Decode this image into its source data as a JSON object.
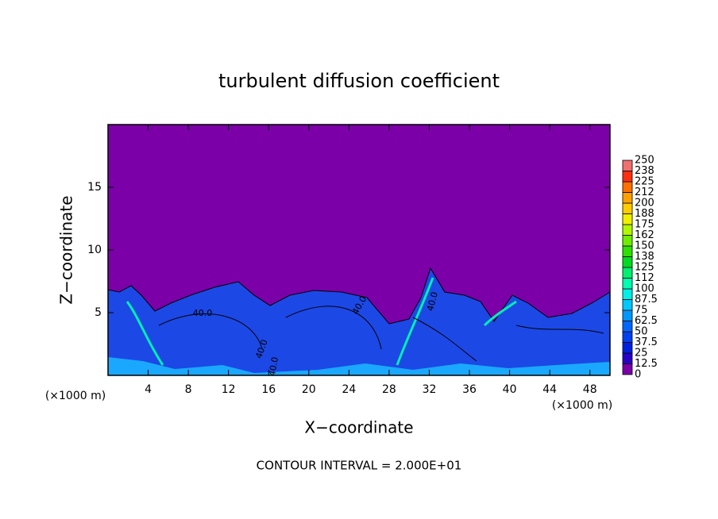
{
  "chart_data": {
    "type": "contour",
    "title": "turbulent diffusion coefficient",
    "x_label": "X−coordinate",
    "y_label": "Z−coordinate",
    "x_unit_label": "(×1000 m)",
    "footer": "CONTOUR INTERVAL = 2.000E+01",
    "xlim": [
      0,
      50
    ],
    "xticks": [
      4,
      8,
      12,
      16,
      20,
      24,
      28,
      32,
      36,
      40,
      44,
      48
    ],
    "ylim": [
      0,
      20
    ],
    "yticks": [
      5,
      10,
      15
    ],
    "contour_labels": [
      "40.0",
      "40.0",
      "40.0",
      "40.0",
      "40.0"
    ],
    "colorbar": {
      "ticks": [
        0,
        12.5,
        25,
        37.5,
        50,
        62.5,
        75,
        87.5,
        100,
        112,
        125,
        138,
        150,
        162,
        175,
        188,
        200,
        212,
        225,
        238,
        250
      ],
      "colors": [
        "#7b00a8",
        "#2a00c8",
        "#0020e0",
        "#0040f0",
        "#0068ff",
        "#0098ff",
        "#00c8ff",
        "#00f0e8",
        "#00ffb0",
        "#00f070",
        "#00dc20",
        "#30e000",
        "#70ec00",
        "#b0f800",
        "#f0f000",
        "#ffcc00",
        "#ffa000",
        "#ff7000",
        "#ff3010",
        "#f07070"
      ]
    }
  }
}
